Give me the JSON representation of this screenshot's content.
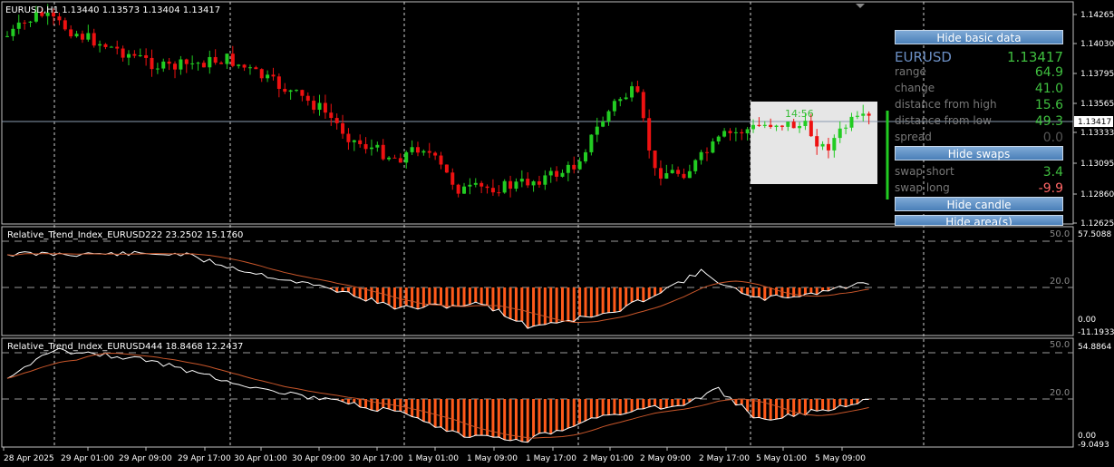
{
  "main_header": "EURUSD,H1  1.13440 1.13573 1.13404 1.13417",
  "ind1_header": "Relative_Trend_Index_EURUSD222 23.2502 15.1760",
  "ind2_header": "Relative_Trend_Index_EURUSD444 18.8468 12.2437",
  "main_axis": [
    "1.14265",
    "1.14030",
    "1.13795",
    "1.13565",
    "1.13333",
    "1.13095",
    "1.12860",
    "1.12625"
  ],
  "current_price": "1.13417",
  "ind1_axis": [
    "57.5088",
    "0.00",
    "-11.1933"
  ],
  "ind1_levels": [
    "50.0",
    "20.0"
  ],
  "ind2_axis": [
    "54.8864",
    "0.00",
    "-9.0493"
  ],
  "ind2_levels": [
    "50.0",
    "20.0"
  ],
  "time_labels": [
    "28 Apr 2025",
    "29 Apr 01:00",
    "29 Apr 09:00",
    "29 Apr 17:00",
    "30 Apr 01:00",
    "30 Apr 09:00",
    "30 Apr 17:00",
    "1 May 01:00",
    "1 May 09:00",
    "1 May 17:00",
    "2 May 01:00",
    "2 May 09:00",
    "2 May 17:00",
    "5 May 01:00",
    "5 May 09:00"
  ],
  "box_timer": "14:56",
  "panel": {
    "hide_basic": "Hide basic data",
    "symbol": "EURUSD",
    "price": "1.13417",
    "rows": [
      {
        "label": "range",
        "value": "64.9"
      },
      {
        "label": "change",
        "value": "41.0"
      },
      {
        "label": "distance from high",
        "value": "15.6"
      },
      {
        "label": "distance from low",
        "value": "49.3"
      },
      {
        "label": "spread",
        "value": "0.0"
      }
    ],
    "hide_swaps": "Hide swaps",
    "swaps": [
      {
        "label": "swap short",
        "value": "3.4"
      },
      {
        "label": "swap long",
        "value": "-9.9"
      }
    ],
    "hide_candle": "Hide candle",
    "hide_area": "Hide area(s)"
  },
  "colors": {
    "bull": "#22cc22",
    "bear": "#ee1111",
    "histogram": "#ff5a1a",
    "line": "#ffffff",
    "signal": "#c8562a",
    "grid": "#ffffff",
    "swap_long": "#ff6666"
  }
}
